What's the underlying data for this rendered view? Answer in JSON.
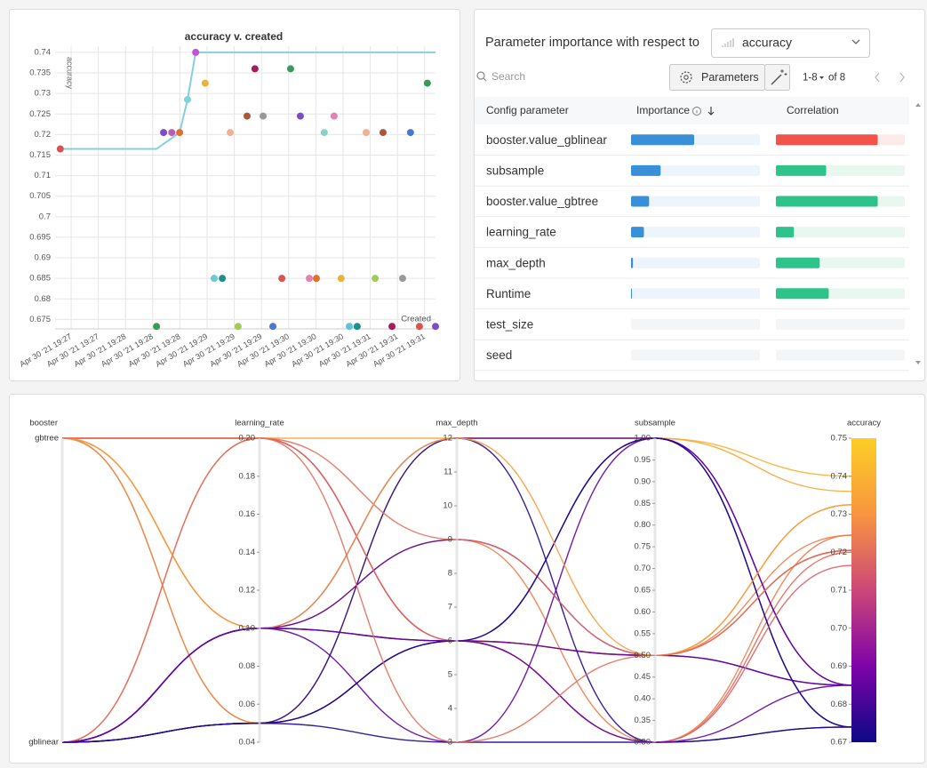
{
  "chart_data": [
    {
      "type": "scatter",
      "title": "accuracy v. created",
      "y_label": "accuracy",
      "x_label": "Created",
      "xlim": [
        -0.59,
        13.4
      ],
      "xticks": [
        {
          "value": 0,
          "label": "Apr 30 '21 19:27"
        },
        {
          "value": 1,
          "label": "Apr 30 '21 19:27"
        },
        {
          "value": 2,
          "label": "Apr 30 '21 19:28"
        },
        {
          "value": 3,
          "label": "Apr 30 '21 19:28"
        },
        {
          "value": 4,
          "label": "Apr 30 '21 19:28"
        },
        {
          "value": 5,
          "label": "Apr 30 '21 19:29"
        },
        {
          "value": 6,
          "label": "Apr 30 '21 19:29"
        },
        {
          "value": 7,
          "label": "Apr 30 '21 19:29"
        },
        {
          "value": 8,
          "label": "Apr 30 '21 19:30"
        },
        {
          "value": 9,
          "label": "Apr 30 '21 19:30"
        },
        {
          "value": 10,
          "label": "Apr 30 '21 19:30"
        },
        {
          "value": 11,
          "label": "Apr 30 '21 19:31"
        },
        {
          "value": 12,
          "label": "Apr 30 '21 19:31"
        },
        {
          "value": 13,
          "label": "Apr 30 '21 19:31"
        }
      ],
      "ylim": [
        0.6727,
        0.7415
      ],
      "yticks": [
        0.675,
        0.68,
        0.685,
        0.69,
        0.695,
        0.7,
        0.705,
        0.71,
        0.715,
        0.72,
        0.725,
        0.73,
        0.735,
        0.74
      ],
      "grid": true,
      "series": [
        {
          "type": "line",
          "color": "#86cfdc",
          "x": [
            -0.4,
            3.14,
            3.99,
            4.28,
            4.58,
            13.4
          ],
          "values": [
            0.7165,
            0.7165,
            0.7205,
            0.7285,
            0.74,
            0.74
          ]
        },
        {
          "type": "scatter",
          "x": [
            -0.4,
            3.14,
            3.4,
            3.7,
            3.99,
            4.28,
            4.58,
            4.93,
            5.26,
            5.56,
            5.85,
            6.14,
            6.47,
            6.76,
            7.06,
            7.42,
            7.75,
            8.07,
            8.43,
            8.76,
            9.02,
            9.31,
            9.67,
            9.93,
            10.23,
            10.52,
            10.85,
            11.18,
            11.47,
            11.8,
            12.19,
            12.48,
            12.81,
            13.1,
            13.4
          ],
          "values": [
            0.7165,
            0.6733,
            0.7205,
            0.7205,
            0.7205,
            0.7285,
            0.74,
            0.7325,
            0.685,
            0.685,
            0.7205,
            0.6733,
            0.7245,
            0.736,
            0.7245,
            0.6733,
            0.685,
            0.736,
            0.7245,
            0.685,
            0.685,
            0.7205,
            0.7245,
            0.685,
            0.6733,
            0.6733,
            0.7205,
            0.685,
            0.7205,
            0.6733,
            0.685,
            0.7205,
            0.6733,
            0.7325,
            0.6733
          ],
          "colors": [
            "#d9534f",
            "#3a9a5b",
            "#7d4bc4",
            "#c05bb5",
            "#e0702e",
            "#7fd3da",
            "#c84fd8",
            "#e8b33a",
            "#6cc9d6",
            "#1e8f8f",
            "#f2b096",
            "#a3c95a",
            "#a5593a",
            "#a31f5a",
            "#999999",
            "#4a78d0",
            "#d9534f",
            "#3a9a5b",
            "#7d4bc4",
            "#e67fb4",
            "#e0702e",
            "#88d3c4",
            "#e67fb4",
            "#e8b33a",
            "#5fc3dc",
            "#1e8f8f",
            "#f2b096",
            "#a3c95a",
            "#a5593a",
            "#a31f5a",
            "#999999",
            "#4a78d0",
            "#d9534f",
            "#3a9a5b",
            "#7d4bc4"
          ]
        }
      ]
    },
    {
      "type": "parallel_coordinates",
      "dimensions": [
        {
          "label": "booster",
          "categories": [
            "gbtree",
            "gblinear"
          ],
          "values": [
            "gbtree",
            "gbtree",
            "gbtree",
            "gbtree",
            "gbtree",
            "gbtree",
            "gblinear",
            "gblinear",
            "gblinear",
            "gblinear",
            "gblinear",
            "gblinear",
            "gblinear",
            "gblinear",
            "gblinear",
            "gblinear",
            "gbtree",
            "gbtree",
            "gblinear",
            "gbtree"
          ]
        },
        {
          "label": "learning_rate",
          "ylim": [
            0.04,
            0.2
          ],
          "yticks": [
            0.04,
            0.06,
            0.08,
            {
              "value": 0.1,
              "label": "0.10"
            },
            0.12,
            0.14,
            0.16,
            0.18,
            {
              "value": 0.2,
              "label": "0.20"
            }
          ],
          "values": [
            0.05,
            0.1,
            0.05,
            0.2,
            0.2,
            0.1,
            0.2,
            0.1,
            0.05,
            0.1,
            0.05,
            0.1,
            0.05,
            0.1,
            0.2,
            0.05,
            0.2,
            0.1,
            0.1,
            0.2
          ]
        },
        {
          "label": "max_depth",
          "ylim": [
            3,
            12
          ],
          "yticks": [
            3,
            4,
            5,
            6,
            7,
            8,
            9,
            10,
            11,
            12
          ],
          "values": [
            12,
            6,
            6,
            6,
            12,
            9,
            6,
            3,
            6,
            9,
            3,
            6,
            12,
            12,
            9,
            6,
            6,
            12,
            6,
            3
          ]
        },
        {
          "label": "subsample",
          "ylim": [
            0.3,
            1.0
          ],
          "yticks": [
            {
              "value": 0.3,
              "label": "0.30"
            },
            0.35,
            {
              "value": 0.4,
              "label": "0.40"
            },
            0.45,
            {
              "value": 0.5,
              "label": "0.50"
            },
            0.55,
            {
              "value": 0.6,
              "label": "0.60"
            },
            0.65,
            {
              "value": 0.7,
              "label": "0.70"
            },
            0.75,
            {
              "value": 0.8,
              "label": "0.80"
            },
            0.85,
            {
              "value": 0.9,
              "label": "0.90"
            },
            0.95,
            {
              "value": 1.0,
              "label": "1.00"
            }
          ],
          "values": [
            1.0,
            0.5,
            0.5,
            0.3,
            1.0,
            0.3,
            0.5,
            1.0,
            1.0,
            0.5,
            0.3,
            0.5,
            0.3,
            1.0,
            0.5,
            1.0,
            0.3,
            0.5,
            0.3,
            0.5
          ]
        },
        {
          "label": "accuracy",
          "ylim": [
            0.67,
            0.75
          ],
          "yticks": [
            0.67,
            0.68,
            0.69,
            {
              "value": 0.7,
              "label": "0.70"
            },
            0.71,
            0.72,
            0.73,
            0.74,
            0.75
          ],
          "colorscale": [
            "#0d0887",
            "#7e03a8",
            "#cc4778",
            "#f89540",
            "#fcce25"
          ],
          "values": [
            0.74,
            0.7325,
            0.7245,
            0.72,
            0.736,
            0.7245,
            0.7205,
            0.685,
            0.674,
            0.685,
            0.674,
            0.685,
            0.674,
            0.685,
            0.7205,
            0.674,
            0.7165,
            0.7325,
            0.685,
            0.7205
          ]
        }
      ]
    }
  ],
  "importance": {
    "title": "Parameter importance with respect to",
    "metric": "accuracy",
    "search_placeholder": "Search",
    "button": "Parameters",
    "page_range": "1-8",
    "page_total": "of 8",
    "columns": [
      "Config parameter",
      "Importance",
      "Correlation"
    ],
    "colors": {
      "importance": "#3a8fd9",
      "positive": "#2ec38b",
      "negative": "#f2544b"
    },
    "rows": [
      {
        "name": "booster.value_gblinear",
        "importance": 0.49,
        "correlation": -0.79
      },
      {
        "name": "subsample",
        "importance": 0.23,
        "correlation": 0.39
      },
      {
        "name": "booster.value_gbtree",
        "importance": 0.14,
        "correlation": 0.79
      },
      {
        "name": "learning_rate",
        "importance": 0.1,
        "correlation": 0.14
      },
      {
        "name": "max_depth",
        "importance": 0.015,
        "correlation": 0.34
      },
      {
        "name": "Runtime",
        "importance": 0.007,
        "correlation": 0.41
      },
      {
        "name": "test_size",
        "importance": 0,
        "correlation": 0
      },
      {
        "name": "seed",
        "importance": 0,
        "correlation": 0
      }
    ]
  }
}
